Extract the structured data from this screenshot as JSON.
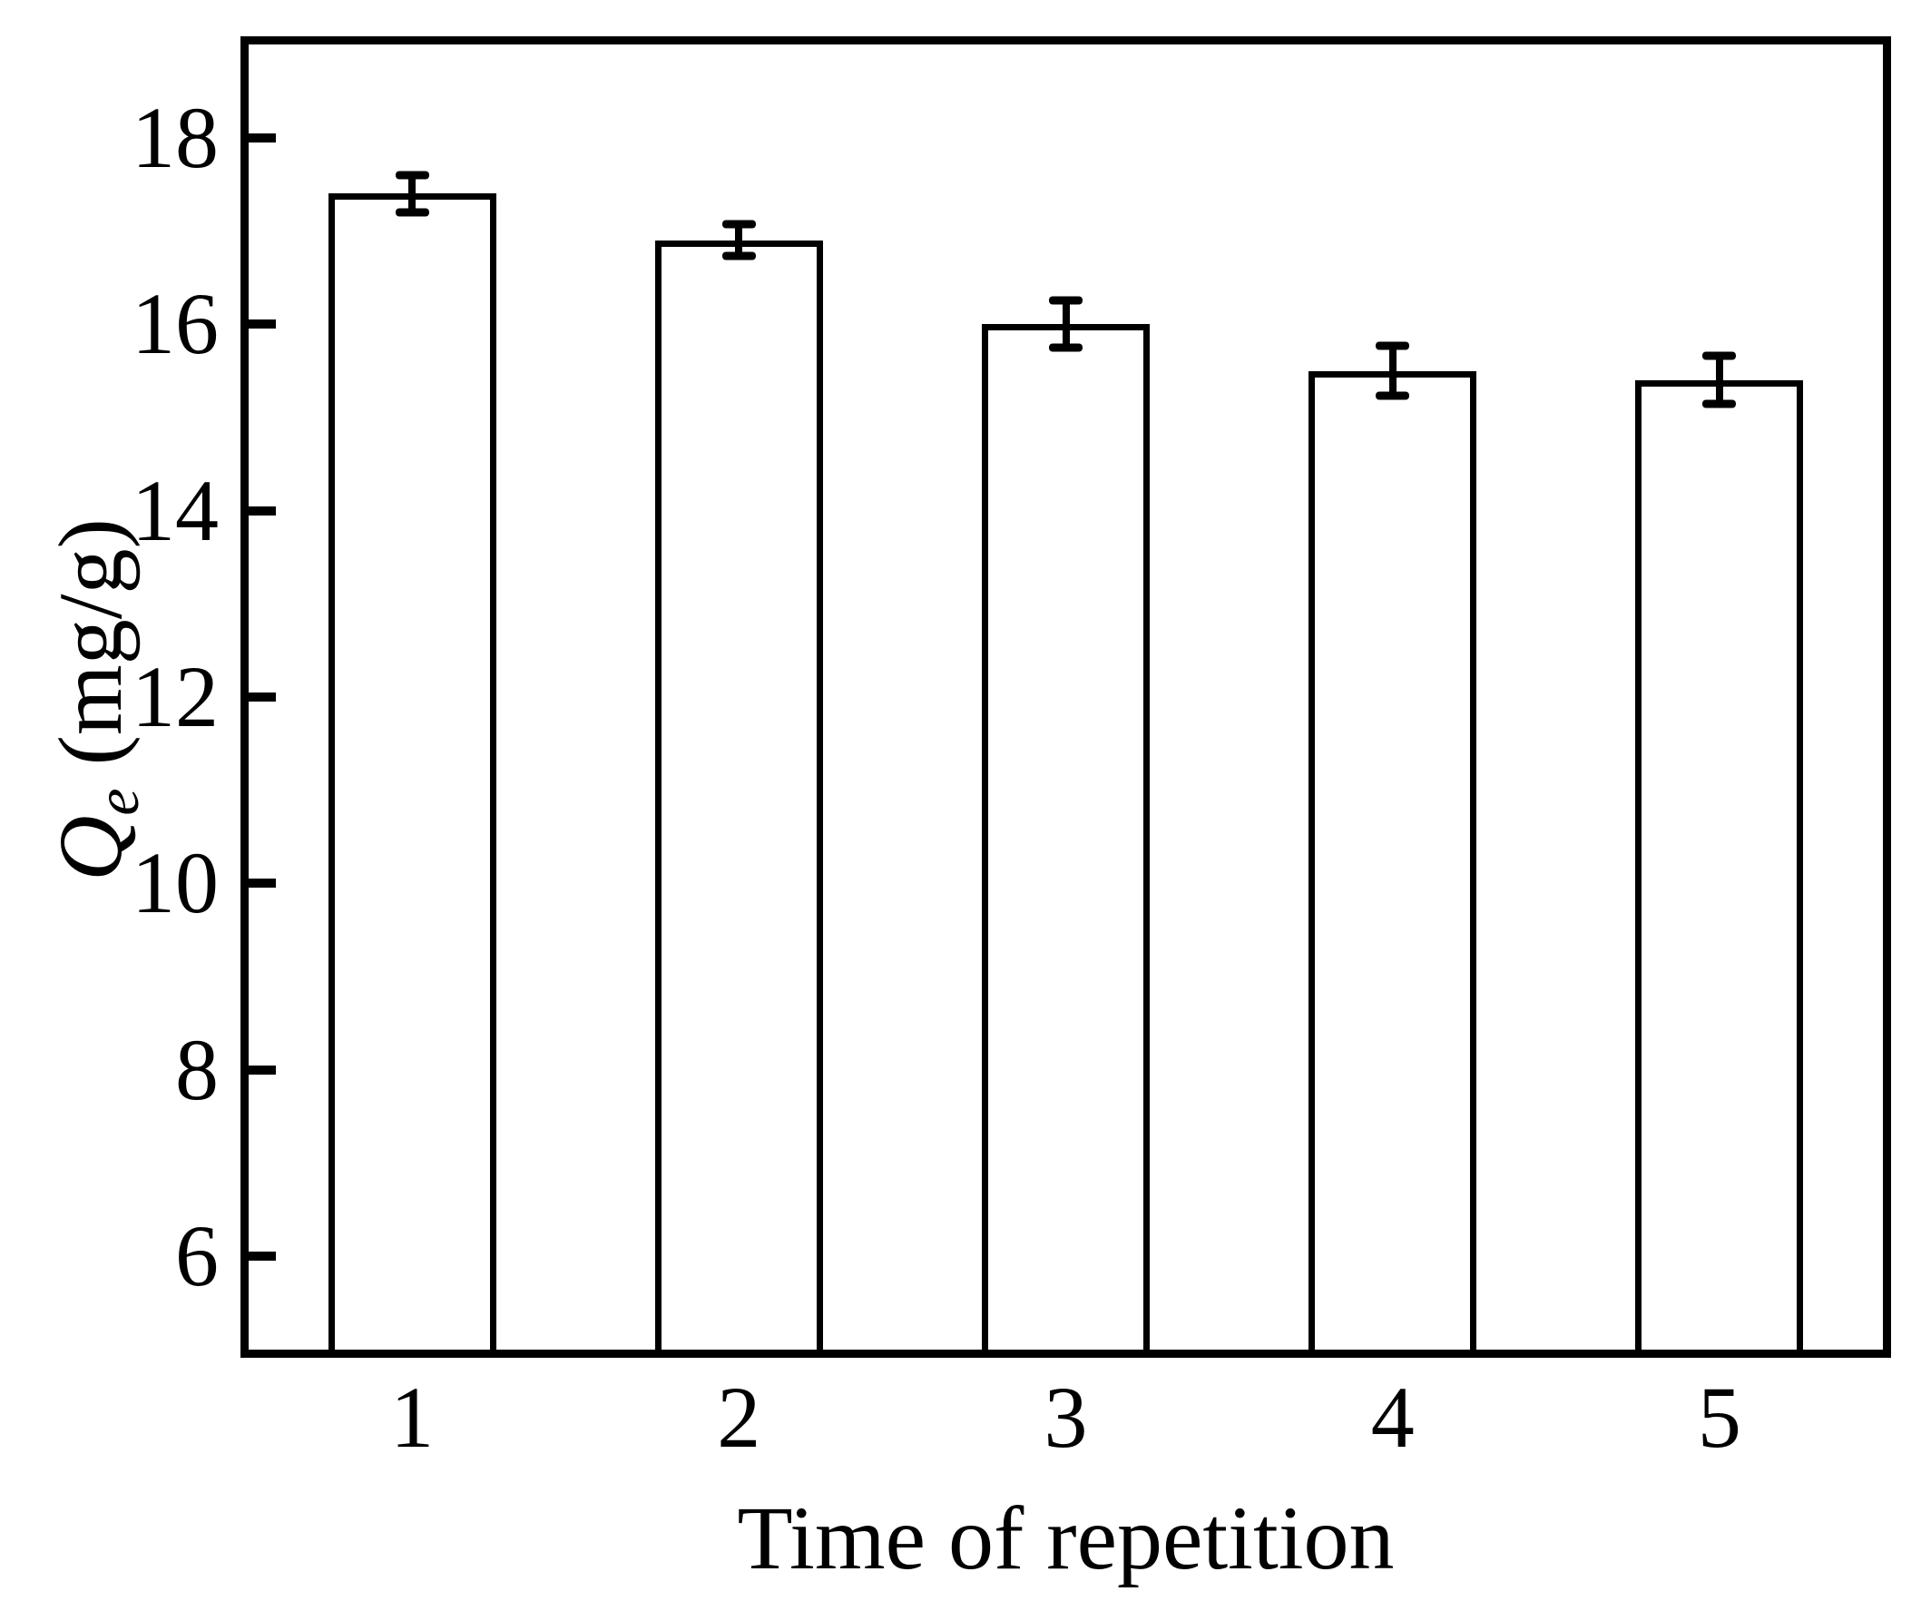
{
  "figure": {
    "background": "#ffffff",
    "ink": "#000000",
    "bar_fill": "#ffffff",
    "bar_edge": "#000000"
  },
  "chart_data": {
    "type": "bar",
    "title": "",
    "xlabel": "Time of repetition",
    "ylabel": {
      "symbol": "Q",
      "subscript": "e",
      "unit": "(mg/g)",
      "text": "Qe (mg/g)"
    },
    "categories": [
      "1",
      "2",
      "3",
      "4",
      "5"
    ],
    "values": [
      17.4,
      16.9,
      16.0,
      15.5,
      15.4
    ],
    "errors": [
      0.2,
      0.17,
      0.25,
      0.27,
      0.26
    ],
    "error_bars": "symmetric",
    "ylim": [
      5,
      19
    ],
    "yticks": [
      6,
      8,
      10,
      12,
      14,
      16,
      18
    ],
    "grid": false,
    "legend": null
  }
}
